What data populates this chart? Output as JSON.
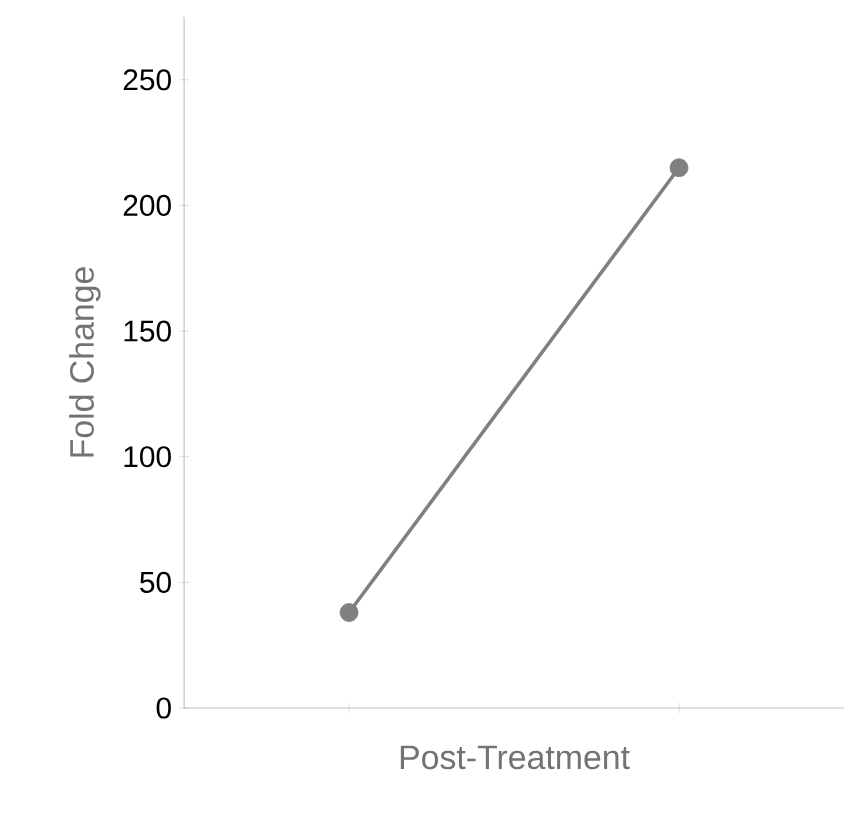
{
  "chart_data": {
    "type": "line",
    "xlabel": "Post-Treatment",
    "ylabel": "Fold Change",
    "categories": [
      null,
      null
    ],
    "values": [
      38,
      215
    ],
    "color": "#808080",
    "marker": "circle",
    "line_style": "solid",
    "ylim": [
      0,
      275
    ],
    "yticks": [
      0,
      50,
      100,
      150,
      200,
      250
    ]
  }
}
